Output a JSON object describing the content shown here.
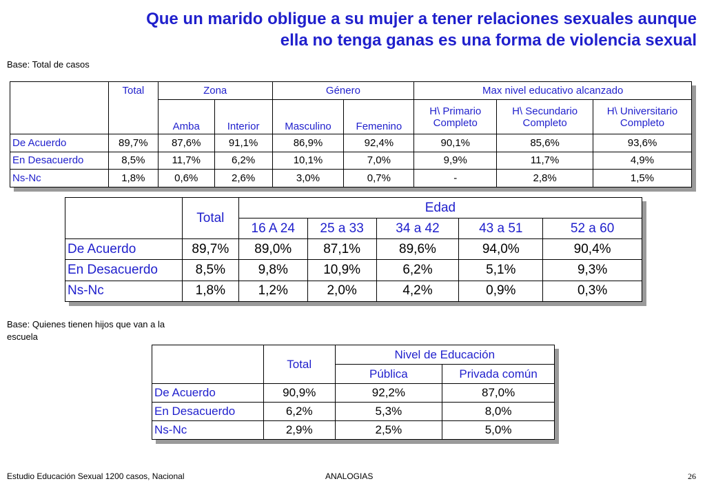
{
  "title_line1": "Que un marido obligue a su mujer a tener relaciones sexuales aunque",
  "title_line2": "ella no tenga ganas es una forma de violencia sexual",
  "base_total": "Base: Total de casos",
  "base_hijos_line1": "Base: Quienes tienen hijos que van a la",
  "base_hijos_line2": "escuela",
  "footer_left": "Estudio Educación Sexual 1200 casos, Nacional",
  "footer_center": "ANALOGIAS",
  "page_number": "26",
  "colors": {
    "title": "#1f1fcc",
    "labels": "#1f1fcc",
    "shadow": "#9a9a9a"
  },
  "table1": {
    "total": "Total",
    "groups": {
      "zona": "Zona",
      "genero": "Género",
      "educ": "Max nivel educativo alcanzado"
    },
    "cols": {
      "amba": "Amba",
      "interior": "Interior",
      "masculino": "Masculino",
      "femenino": "Femenino",
      "primario_1": "H\\ Primario",
      "primario_2": "Completo",
      "secundario_1": "H\\ Secundario",
      "secundario_2": "Completo",
      "universitario_1": "H\\ Universitario",
      "universitario_2": "Completo"
    },
    "rows": [
      {
        "label": "De Acuerdo",
        "values": [
          "89,7%",
          "87,6%",
          "91,1%",
          "86,9%",
          "92,4%",
          "90,1%",
          "85,6%",
          "93,6%"
        ]
      },
      {
        "label": "En Desacuerdo",
        "values": [
          "8,5%",
          "11,7%",
          "6,2%",
          "10,1%",
          "7,0%",
          "9,9%",
          "11,7%",
          "4,9%"
        ]
      },
      {
        "label": "Ns-Nc",
        "values": [
          "1,8%",
          "0,6%",
          "2,6%",
          "3,0%",
          "0,7%",
          "-",
          "2,8%",
          "1,5%"
        ]
      }
    ]
  },
  "table2": {
    "total": "Total",
    "group": "Edad",
    "cols": [
      "16 A 24",
      "25 a 33",
      "34 a 42",
      "43 a 51",
      "52 a 60"
    ],
    "rows": [
      {
        "label": "De Acuerdo",
        "values": [
          "89,7%",
          "89,0%",
          "87,1%",
          "89,6%",
          "94,0%",
          "90,4%"
        ]
      },
      {
        "label": "En Desacuerdo",
        "values": [
          "8,5%",
          "9,8%",
          "10,9%",
          "6,2%",
          "5,1%",
          "9,3%"
        ]
      },
      {
        "label": "Ns-Nc",
        "values": [
          "1,8%",
          "1,2%",
          "2,0%",
          "4,2%",
          "0,9%",
          "0,3%"
        ]
      }
    ]
  },
  "table3": {
    "total": "Total",
    "group": "Nivel de Educación",
    "cols": [
      "Pública",
      "Privada común"
    ],
    "rows": [
      {
        "label": "De Acuerdo",
        "values": [
          "90,9%",
          "92,2%",
          "87,0%"
        ]
      },
      {
        "label": "En Desacuerdo",
        "values": [
          "6,2%",
          "5,3%",
          "8,0%"
        ]
      },
      {
        "label": "Ns-Nc",
        "values": [
          "2,9%",
          "2,5%",
          "5,0%"
        ]
      }
    ]
  }
}
